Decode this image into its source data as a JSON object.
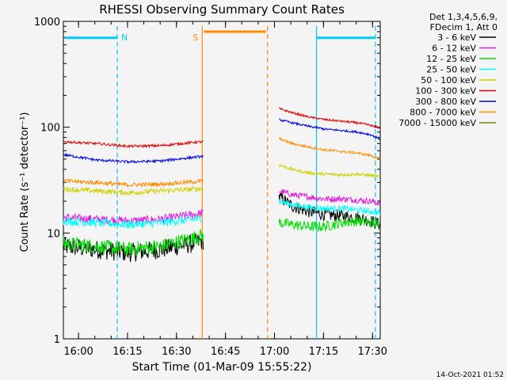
{
  "page_background": "#f4f4f4",
  "footer_timestamp": "14-Oct-2021 01:52",
  "chart_data": {
    "type": "line",
    "title": "RHESSI Observing Summary Count Rates",
    "xlabel": "Start Time (01-Mar-09 15:55:22)",
    "ylabel": "Count Rate (s⁻¹ detector⁻¹)",
    "yscale": "log",
    "xlim_minutes_since_start": [
      0,
      97
    ],
    "ylim": [
      1,
      1000
    ],
    "x_ticks": [
      {
        "label": "16:00",
        "minutes": 4.63
      },
      {
        "label": "16:15",
        "minutes": 19.63
      },
      {
        "label": "16:30",
        "minutes": 34.63
      },
      {
        "label": "16:45",
        "minutes": 49.63
      },
      {
        "label": "17:00",
        "minutes": 64.63
      },
      {
        "label": "17:15",
        "minutes": 79.63
      },
      {
        "label": "17:30",
        "minutes": 94.63
      }
    ],
    "y_ticks": [
      {
        "label": "1",
        "value": 1
      },
      {
        "label": "10",
        "value": 10
      },
      {
        "label": "100",
        "value": 100
      },
      {
        "label": "1000",
        "value": 1000
      }
    ],
    "legend": {
      "placement": "right",
      "header": [
        "Det 1,3,4,5,6,9,",
        "FDecim 1, Att 0"
      ]
    },
    "series": [
      {
        "name": "3 - 6 keV",
        "color": "#000000",
        "segments": [
          {
            "x": [
              0,
              10,
              20,
              30,
              40,
              43
            ],
            "y": [
              7.5,
              7,
              6.5,
              7,
              8,
              8.5
            ],
            "noise": 0.09
          },
          {
            "x": [
              66,
              70,
              75,
              80,
              85,
              90,
              94,
              97
            ],
            "y": [
              22,
              18,
              16,
              15,
              14.5,
              14,
              13,
              12
            ],
            "noise": 0.06
          }
        ]
      },
      {
        "name": "6 - 12 keV",
        "color": "#e020e0",
        "segments": [
          {
            "x": [
              0,
              10,
              20,
              30,
              40,
              43
            ],
            "y": [
              14,
              13.5,
              13,
              13.5,
              15,
              15.5
            ],
            "noise": 0.04
          },
          {
            "x": [
              66,
              70,
              75,
              80,
              85,
              90,
              94,
              97
            ],
            "y": [
              25,
              23,
              22,
              21,
              21,
              20.5,
              20,
              19
            ],
            "noise": 0.03
          }
        ]
      },
      {
        "name": "12 - 25 keV",
        "color": "#00e000",
        "segments": [
          {
            "x": [
              0,
              10,
              20,
              30,
              40,
              43
            ],
            "y": [
              8,
              7.5,
              7,
              7.5,
              9,
              9.5
            ],
            "noise": 0.07
          },
          {
            "x": [
              66,
              70,
              75,
              80,
              85,
              90,
              94,
              97
            ],
            "y": [
              12.5,
              12,
              11.5,
              11.5,
              12.5,
              13,
              12.5,
              12
            ],
            "noise": 0.05
          }
        ]
      },
      {
        "name": "25 - 50 keV",
        "color": "#00ffff",
        "segments": [
          {
            "x": [
              0,
              10,
              20,
              30,
              40,
              43
            ],
            "y": [
              13,
              12.5,
              12,
              12.5,
              13.5,
              14
            ],
            "noise": 0.04
          },
          {
            "x": [
              66,
              70,
              75,
              80,
              85,
              90,
              94,
              97
            ],
            "y": [
              20,
              18.5,
              17.5,
              17,
              17,
              16.5,
              16,
              15.5
            ],
            "noise": 0.03
          }
        ]
      },
      {
        "name": "50 - 100 keV",
        "color": "#d0d000",
        "segments": [
          {
            "x": [
              0,
              10,
              20,
              30,
              40,
              43
            ],
            "y": [
              26,
              25,
              24,
              25,
              26,
              26.5
            ],
            "noise": 0.025
          },
          {
            "x": [
              66,
              70,
              75,
              80,
              85,
              90,
              94,
              97
            ],
            "y": [
              44,
              40,
              37,
              36,
              35.5,
              36,
              35,
              34
            ],
            "noise": 0.015
          }
        ]
      },
      {
        "name": "100 - 300 keV",
        "color": "#e00000",
        "segments": [
          {
            "x": [
              0,
              10,
              20,
              30,
              40,
              43
            ],
            "y": [
              73,
              70,
              66,
              67,
              72,
              73
            ],
            "noise": 0.012
          },
          {
            "x": [
              66,
              70,
              75,
              80,
              85,
              90,
              94,
              97
            ],
            "y": [
              150,
              137,
              125,
              118,
              114,
              110,
              104,
              98
            ],
            "noise": 0.01
          }
        ]
      },
      {
        "name": "300 - 800 keV",
        "color": "#0000e0",
        "segments": [
          {
            "x": [
              0,
              10,
              20,
              30,
              40,
              43
            ],
            "y": [
              55,
              49,
              47,
              48,
              52,
              53
            ],
            "noise": 0.012
          },
          {
            "x": [
              66,
              70,
              75,
              80,
              85,
              90,
              94,
              97
            ],
            "y": [
              118,
              110,
              102,
              96,
              93,
              90,
              85,
              77
            ],
            "noise": 0.01
          }
        ]
      },
      {
        "name": "800 - 7000 keV",
        "color": "#ff8c00",
        "segments": [
          {
            "x": [
              0,
              10,
              20,
              30,
              40,
              43
            ],
            "y": [
              31,
              30,
              28.5,
              29,
              30.5,
              31
            ],
            "noise": 0.02
          },
          {
            "x": [
              66,
              70,
              75,
              80,
              85,
              90,
              94,
              97
            ],
            "y": [
              78,
              70,
              65,
              61,
              59,
              57,
              54,
              50
            ],
            "noise": 0.012
          }
        ]
      },
      {
        "name": "7000 - 15000 keV",
        "color": "#808000",
        "segments": []
      }
    ],
    "attenuator_markers": [
      {
        "label": "N",
        "color": "#00ccff",
        "x_minutes": 16.5,
        "dashed": true
      },
      {
        "label": "",
        "color": "#00ccff",
        "x_minutes": 77.5,
        "dashed": false
      },
      {
        "label": "",
        "color": "#00ccff",
        "x_minutes": 95.5,
        "dashed": true
      },
      {
        "label": "S",
        "color": "#ff8c00",
        "x_minutes": 42.5,
        "dashed": false
      },
      {
        "label": "",
        "color": "#ff8c00",
        "x_minutes": 62.5,
        "dashed": true
      }
    ],
    "interval_bars": [
      {
        "color": "#00ccff",
        "x_start": 0.5,
        "x_end": 16.5,
        "y": 700
      },
      {
        "color": "#ff8c00",
        "x_start": 43,
        "x_end": 62,
        "y": 800
      },
      {
        "color": "#00ccff",
        "x_start": 77.5,
        "x_end": 95.5,
        "y": 700
      }
    ]
  }
}
